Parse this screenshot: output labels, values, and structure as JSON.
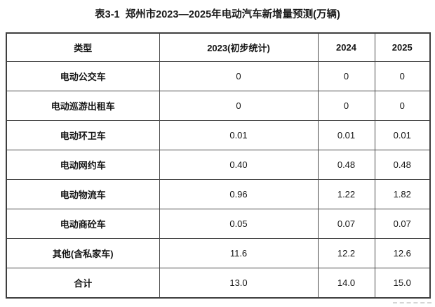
{
  "page": {
    "title": "表3-1  郑州市2023—2025年电动汽车新增量预测(万辆)"
  },
  "table": {
    "columns": [
      "类型",
      "2023(初步统计)",
      "2024",
      "2025"
    ],
    "rows": [
      {
        "type": "电动公交车",
        "v2023": "0",
        "v2024": "0",
        "v2025": "0"
      },
      {
        "type": "电动巡游出租车",
        "v2023": "0",
        "v2024": "0",
        "v2025": "0"
      },
      {
        "type": "电动环卫车",
        "v2023": "0.01",
        "v2024": "0.01",
        "v2025": "0.01"
      },
      {
        "type": "电动网约车",
        "v2023": "0.40",
        "v2024": "0.48",
        "v2025": "0.48"
      },
      {
        "type": "电动物流车",
        "v2023": "0.96",
        "v2024": "1.22",
        "v2025": "1.82"
      },
      {
        "type": "电动商砼车",
        "v2023": "0.05",
        "v2024": "0.07",
        "v2025": "0.07"
      },
      {
        "type": "其他(含私家车)",
        "v2023": "11.6",
        "v2024": "12.2",
        "v2025": "12.6"
      },
      {
        "type": "合计",
        "v2023": "13.0",
        "v2024": "14.0",
        "v2025": "15.0"
      }
    ]
  },
  "colors": {
    "text": "#141414",
    "border": "#4a4a4a",
    "background": "#ffffff"
  },
  "chart_data": {
    "type": "table",
    "title": "表3-1 郑州市2023—2025年电动汽车新增量预测(万辆)",
    "unit": "万辆",
    "columns": [
      "类型",
      "2023(初步统计)",
      "2024",
      "2025"
    ],
    "rows": [
      [
        "电动公交车",
        0,
        0,
        0
      ],
      [
        "电动巡游出租车",
        0,
        0,
        0
      ],
      [
        "电动环卫车",
        0.01,
        0.01,
        0.01
      ],
      [
        "电动网约车",
        0.4,
        0.48,
        0.48
      ],
      [
        "电动物流车",
        0.96,
        1.22,
        1.82
      ],
      [
        "电动商砼车",
        0.05,
        0.07,
        0.07
      ],
      [
        "其他(含私家车)",
        11.6,
        12.2,
        12.6
      ],
      [
        "合计",
        13.0,
        14.0,
        15.0
      ]
    ]
  }
}
